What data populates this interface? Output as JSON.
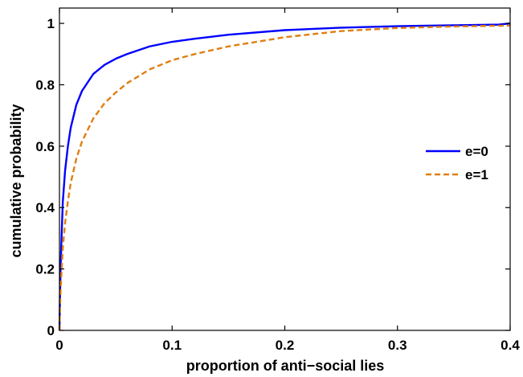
{
  "chart_data": {
    "type": "line",
    "title": "",
    "xlabel": "proportion of anti−social lies",
    "ylabel": "cumulative probability",
    "xlim": [
      0,
      0.4
    ],
    "ylim": [
      0,
      1.05
    ],
    "xticks": [
      0,
      0.1,
      0.2,
      0.3,
      0.4
    ],
    "xtick_labels": [
      "0",
      "0.1",
      "0.2",
      "0.3",
      "0.4"
    ],
    "yticks": [
      0,
      0.2,
      0.4,
      0.6,
      0.8,
      1
    ],
    "ytick_labels": [
      "0",
      "0.2",
      "0.4",
      "0.6",
      "0.8",
      "1"
    ],
    "grid": false,
    "legend_position": "right",
    "series": [
      {
        "name": "e=0",
        "color": "#0000ff",
        "style": "solid",
        "x": [
          0,
          0.0005,
          0.001,
          0.002,
          0.003,
          0.005,
          0.0075,
          0.01,
          0.015,
          0.02,
          0.03,
          0.04,
          0.05,
          0.06,
          0.08,
          0.1,
          0.12,
          0.15,
          0.2,
          0.25,
          0.3,
          0.35,
          0.39,
          0.4
        ],
        "y": [
          0,
          0.12,
          0.2,
          0.32,
          0.42,
          0.52,
          0.6,
          0.66,
          0.735,
          0.78,
          0.835,
          0.865,
          0.885,
          0.9,
          0.925,
          0.94,
          0.95,
          0.963,
          0.978,
          0.986,
          0.991,
          0.994,
          0.996,
          1.0
        ]
      },
      {
        "name": "e=1",
        "color": "#e07f12",
        "style": "dashed",
        "x": [
          0,
          0.0005,
          0.001,
          0.002,
          0.003,
          0.005,
          0.0075,
          0.01,
          0.015,
          0.02,
          0.03,
          0.04,
          0.05,
          0.06,
          0.08,
          0.1,
          0.12,
          0.15,
          0.2,
          0.25,
          0.3,
          0.35,
          0.4
        ],
        "y": [
          0,
          0.08,
          0.13,
          0.2,
          0.27,
          0.35,
          0.42,
          0.48,
          0.56,
          0.615,
          0.69,
          0.74,
          0.775,
          0.805,
          0.85,
          0.88,
          0.9,
          0.925,
          0.955,
          0.975,
          0.985,
          0.99,
          0.993
        ]
      }
    ]
  }
}
